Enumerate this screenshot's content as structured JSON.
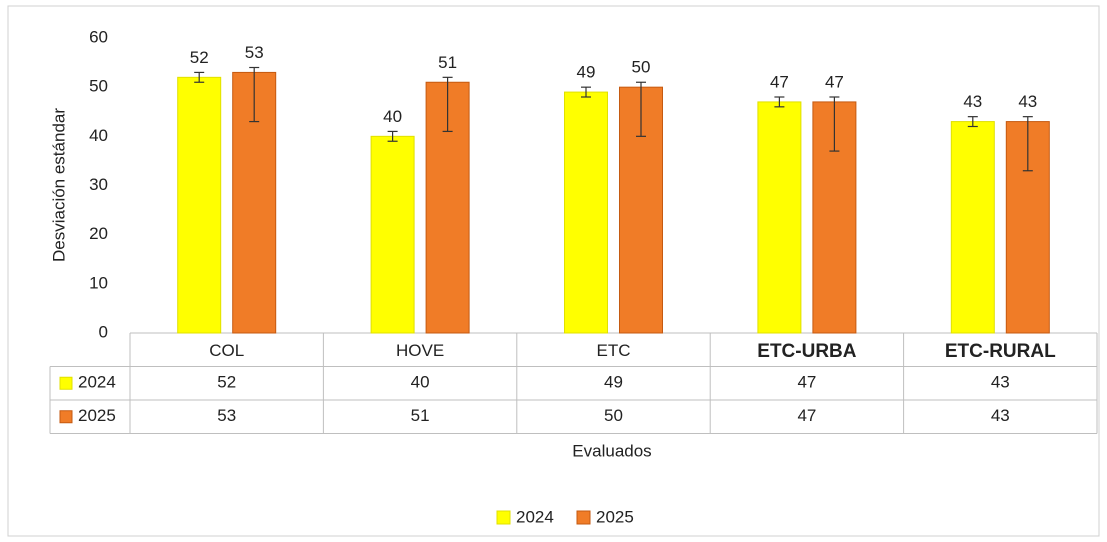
{
  "chart_data": {
    "type": "bar",
    "x_label": "Evaluados",
    "y_label": "Desviación estándar",
    "categories": [
      "COL",
      "HOVE",
      "ETC",
      "ETC-URBA",
      "ETC-RURAL"
    ],
    "series": [
      {
        "name": "2024",
        "color": "#ffff00",
        "values": [
          52,
          40,
          49,
          47,
          43
        ],
        "error_plus": [
          1,
          1,
          1,
          1,
          1
        ],
        "error_minus": [
          1,
          1,
          1,
          1,
          1
        ]
      },
      {
        "name": "2025",
        "color": "#f07c27",
        "values": [
          53,
          51,
          50,
          47,
          43
        ],
        "error_plus": [
          1,
          1,
          1,
          1,
          1
        ],
        "error_minus": [
          10,
          10,
          10,
          10,
          10
        ]
      }
    ],
    "ylim": [
      0,
      60
    ],
    "yticks": [
      0,
      10,
      20,
      30,
      40,
      50,
      60
    ],
    "grid": false,
    "legend": "bottom",
    "data_table": true
  }
}
